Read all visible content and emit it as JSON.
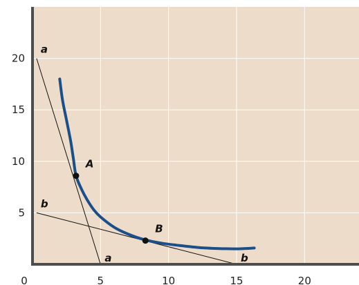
{
  "chart_data": {
    "type": "line",
    "xlim": [
      0,
      24
    ],
    "ylim": [
      0,
      25
    ],
    "x_ticks": [
      0,
      5,
      10,
      15,
      20
    ],
    "y_ticks": [
      5,
      10,
      15,
      20
    ],
    "grid": true,
    "colors": {
      "background": "#ecdcc9",
      "grid": "#ffffff",
      "axis": "#4d4d4d",
      "curve": "#1b4f8a",
      "line": "#111111",
      "point": "#111111"
    },
    "series": [
      {
        "values": [
          [
            2.0,
            18.0
          ],
          [
            2.2,
            16.0
          ],
          [
            2.5,
            14.0
          ],
          [
            2.8,
            12.0
          ],
          [
            3.0,
            10.3
          ],
          [
            3.2,
            8.6
          ],
          [
            3.6,
            7.3
          ],
          [
            4.0,
            6.3
          ],
          [
            4.5,
            5.3
          ],
          [
            5.0,
            4.6
          ],
          [
            6.0,
            3.6
          ],
          [
            7.0,
            2.95
          ],
          [
            8.2,
            2.4
          ],
          [
            9.5,
            2.05
          ],
          [
            11.0,
            1.8
          ],
          [
            12.5,
            1.6
          ],
          [
            14.0,
            1.52
          ],
          [
            15.0,
            1.5
          ],
          [
            16.3,
            1.58
          ]
        ]
      }
    ],
    "lines": [
      {
        "from": [
          0.3,
          20.0
        ],
        "to": [
          5.0,
          0.0
        ],
        "start_label": "a",
        "end_label": "a"
      },
      {
        "from": [
          0.3,
          5.0
        ],
        "to": [
          15.0,
          0.0
        ],
        "start_label": "b",
        "end_label": "b"
      }
    ],
    "points": [
      {
        "label": "A",
        "x": 3.2,
        "y": 8.6
      },
      {
        "label": "B",
        "x": 8.3,
        "y": 2.3
      }
    ]
  }
}
